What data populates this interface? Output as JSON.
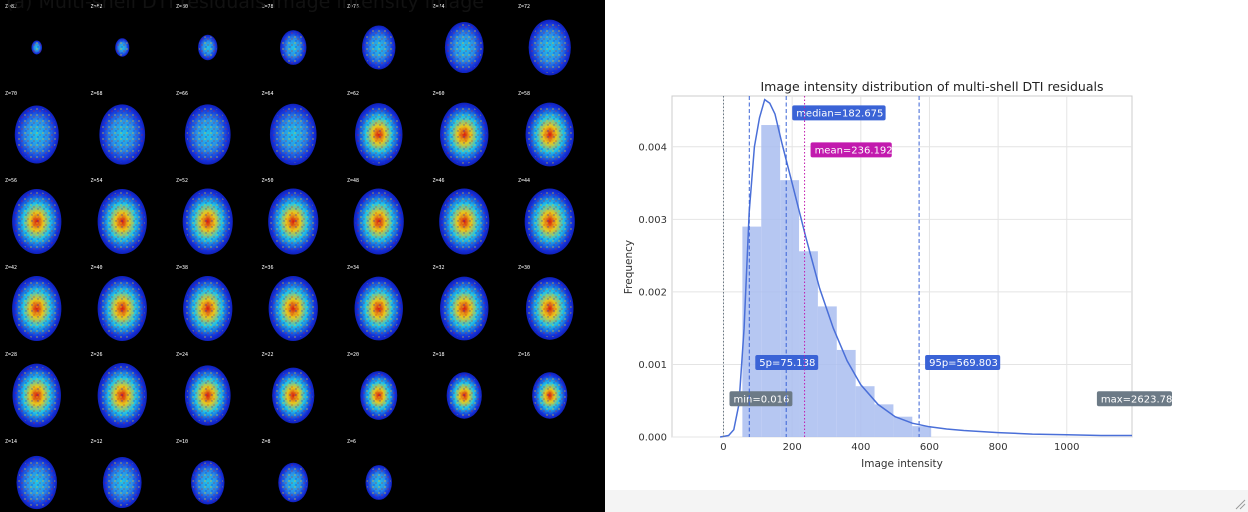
{
  "mosaic": {
    "title": "(a) Multi-shell DTI residuals image intensity image",
    "rows": [
      [
        "Z=83",
        "Z=82",
        "Z=80",
        "Z=78",
        "Z=76",
        "Z=74",
        "Z=72"
      ],
      [
        "Z=70",
        "Z=68",
        "Z=66",
        "Z=64",
        "Z=62",
        "Z=60",
        "Z=58"
      ],
      [
        "Z=56",
        "Z=54",
        "Z=52",
        "Z=50",
        "Z=48",
        "Z=46",
        "Z=44"
      ],
      [
        "Z=42",
        "Z=40",
        "Z=38",
        "Z=36",
        "Z=34",
        "Z=32",
        "Z=30"
      ],
      [
        "Z=28",
        "Z=26",
        "Z=24",
        "Z=22",
        "Z=20",
        "Z=18",
        "Z=16"
      ],
      [
        "Z=14",
        "Z=12",
        "Z=10",
        "Z=8",
        "Z=6",
        "",
        ""
      ]
    ],
    "colors": {
      "background": "#000000",
      "low": "#0a1fd8",
      "mid": "#21c4e8",
      "high": "#e8c81c",
      "peak": "#d81a0e"
    }
  },
  "chart_data": {
    "type": "bar",
    "title": "Image intensity distribution of multi-shell DTI residuals",
    "xlabel": "Image intensity",
    "ylabel": "Frequency",
    "xlim": [
      -150,
      1190
    ],
    "ylim": [
      0,
      0.0047
    ],
    "xticks": [
      0,
      200,
      400,
      600,
      800,
      1000
    ],
    "yticks": [
      0.0,
      0.001,
      0.002,
      0.003,
      0.004
    ],
    "xtick_labels": [
      "0",
      "200",
      "400",
      "600",
      "800",
      "1000"
    ],
    "ytick_labels": [
      "0.000",
      "0.001",
      "0.002",
      "0.003",
      "0.004"
    ],
    "histogram": {
      "bin_edges": [
        55,
        110,
        165,
        220,
        275,
        330,
        385,
        440,
        495,
        550,
        605
      ],
      "values": [
        0.0029,
        0.0043,
        0.00354,
        0.00256,
        0.0018,
        0.0012,
        0.0007,
        0.00045,
        0.00028,
        0.00015
      ]
    },
    "kde": {
      "x": [
        -10,
        15,
        30,
        45,
        60,
        75,
        90,
        105,
        120,
        135,
        150,
        170,
        200,
        240,
        280,
        320,
        360,
        400,
        450,
        500,
        550,
        600,
        650,
        700,
        800,
        900,
        1000,
        1100,
        1190
      ],
      "y": [
        0.0,
        2e-05,
        0.0001,
        0.00045,
        0.0015,
        0.0031,
        0.004,
        0.0044,
        0.00465,
        0.0046,
        0.00445,
        0.00405,
        0.0035,
        0.00275,
        0.00205,
        0.0015,
        0.00105,
        0.00072,
        0.00045,
        0.00028,
        0.00019,
        0.00014,
        0.00011,
        9e-05,
        6e-05,
        4e-05,
        3e-05,
        2e-05,
        2e-05
      ]
    },
    "markers": [
      {
        "label": "min=0.016",
        "x": 0.016,
        "color": "#6c7a86",
        "style": "dotted",
        "label_y": 0.00052
      },
      {
        "label": "5p=75.138",
        "x": 75.138,
        "color": "#3a63d6",
        "style": "dashed",
        "label_y": 0.00102
      },
      {
        "label": "median=182.675",
        "x": 182.675,
        "color": "#3a63d6",
        "style": "dashed",
        "label_y": 0.00446
      },
      {
        "label": "mean=236.192",
        "x": 236.192,
        "color": "#c21aae",
        "style": "dotted",
        "label_y": 0.00395
      },
      {
        "label": "95p=569.803",
        "x": 569.803,
        "color": "#3a63d6",
        "style": "dashed",
        "label_y": 0.00102
      },
      {
        "label": "max=2623.78",
        "x": 1150,
        "color": "#6c7a86",
        "style": "none",
        "label_y": 0.00052
      }
    ],
    "colors": {
      "bars": "#a9bdf0",
      "kde": "#4a6fd8",
      "grid": "#e4e4e4"
    },
    "grid": true
  }
}
